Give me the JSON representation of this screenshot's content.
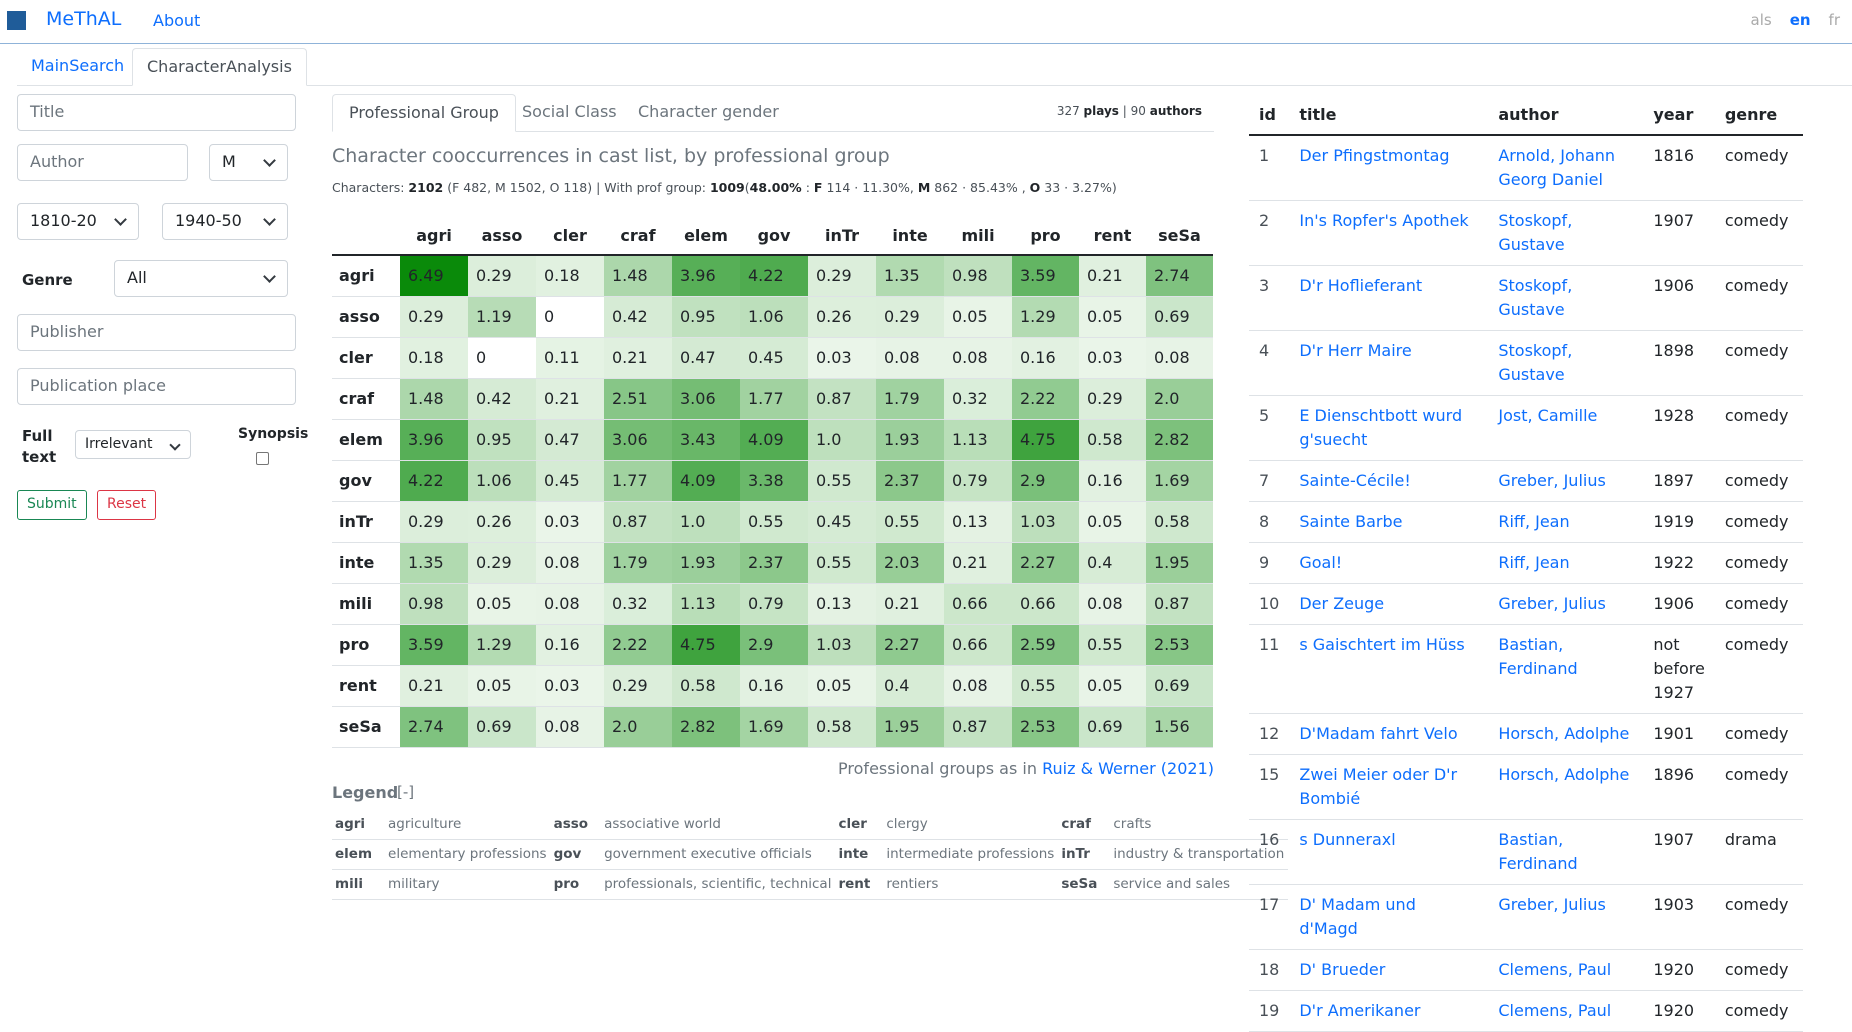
{
  "nav": {
    "brand": "MeThAL",
    "about": "About",
    "langs": [
      {
        "code": "als",
        "active": false
      },
      {
        "code": "en",
        "active": true
      },
      {
        "code": "fr",
        "active": false
      }
    ]
  },
  "main_tabs": [
    {
      "label": "MainSearch",
      "active": false
    },
    {
      "label": "CharacterAnalysis",
      "active": true
    }
  ],
  "search": {
    "title_placeholder": "Title",
    "author_placeholder": "Author",
    "gender_value": "M",
    "from_value": "1810-20",
    "to_value": "1940-50",
    "genre_label": "Genre",
    "genre_value": "All",
    "publisher_placeholder": "Publisher",
    "place_placeholder": "Publication place",
    "fulltext_label_1": "Full",
    "fulltext_label_2": "text",
    "fulltext_value": "Irrelevant",
    "synopsis_label": "Synopsis",
    "submit": "Submit",
    "reset": "Reset"
  },
  "sub_tabs": [
    {
      "label": "Professional Group",
      "active": true
    },
    {
      "label": "Social Class",
      "active": false
    },
    {
      "label": "Character gender",
      "active": false
    }
  ],
  "counts": {
    "plays": "327",
    "plays_label": "plays",
    "sep": "|",
    "authors": "90",
    "authors_label": "authors"
  },
  "chart_title": "Character cooccurrences in cast list, by professional group",
  "stats": {
    "p1": "Characters:",
    "total": "2102",
    "p2": "(F 482, M 1502, O 118) | With prof group:",
    "with": "1009",
    "p3": "(",
    "pct": "48.00%",
    "p4": ":",
    "f": "F",
    "f_val": "114 · 11.30%,",
    "m": "M",
    "m_val": "862 · 85.43% ,",
    "o": "O",
    "o_val": "33 · 3.27%)"
  },
  "chart_data": {
    "type": "heatmap",
    "columns": [
      "agri",
      "asso",
      "cler",
      "craf",
      "elem",
      "gov",
      "inTr",
      "inte",
      "mili",
      "pro",
      "rent",
      "seSa"
    ],
    "rows": [
      "agri",
      "asso",
      "cler",
      "craf",
      "elem",
      "gov",
      "inTr",
      "inte",
      "mili",
      "pro",
      "rent",
      "seSa"
    ],
    "values": [
      [
        "6.49",
        "0.29",
        "0.18",
        "1.48",
        "3.96",
        "4.22",
        "0.29",
        "1.35",
        "0.98",
        "3.59",
        "0.21",
        "2.74"
      ],
      [
        "0.29",
        "1.19",
        "0",
        "0.42",
        "0.95",
        "1.06",
        "0.26",
        "0.29",
        "0.05",
        "1.29",
        "0.05",
        "0.69"
      ],
      [
        "0.18",
        "0",
        "0.11",
        "0.21",
        "0.47",
        "0.45",
        "0.03",
        "0.08",
        "0.08",
        "0.16",
        "0.03",
        "0.08"
      ],
      [
        "1.48",
        "0.42",
        "0.21",
        "2.51",
        "3.06",
        "1.77",
        "0.87",
        "1.79",
        "0.32",
        "2.22",
        "0.29",
        "2.0"
      ],
      [
        "3.96",
        "0.95",
        "0.47",
        "3.06",
        "3.43",
        "4.09",
        "1.0",
        "1.93",
        "1.13",
        "4.75",
        "0.58",
        "2.82"
      ],
      [
        "4.22",
        "1.06",
        "0.45",
        "1.77",
        "4.09",
        "3.38",
        "0.55",
        "2.37",
        "0.79",
        "2.9",
        "0.16",
        "1.69"
      ],
      [
        "0.29",
        "0.26",
        "0.03",
        "0.87",
        "1.0",
        "0.55",
        "0.45",
        "0.55",
        "0.13",
        "1.03",
        "0.05",
        "0.58"
      ],
      [
        "1.35",
        "0.29",
        "0.08",
        "1.79",
        "1.93",
        "2.37",
        "0.55",
        "2.03",
        "0.21",
        "2.27",
        "0.4",
        "1.95"
      ],
      [
        "0.98",
        "0.05",
        "0.08",
        "0.32",
        "1.13",
        "0.79",
        "0.13",
        "0.21",
        "0.66",
        "0.66",
        "0.08",
        "0.87"
      ],
      [
        "3.59",
        "1.29",
        "0.16",
        "2.22",
        "4.75",
        "2.9",
        "1.03",
        "2.27",
        "0.66",
        "2.59",
        "0.55",
        "2.53"
      ],
      [
        "0.21",
        "0.05",
        "0.03",
        "0.29",
        "0.58",
        "0.16",
        "0.05",
        "0.4",
        "0.08",
        "0.55",
        "0.05",
        "0.69"
      ],
      [
        "2.74",
        "0.69",
        "0.08",
        "2.0",
        "2.82",
        "1.69",
        "0.58",
        "1.95",
        "0.87",
        "2.53",
        "0.69",
        "1.56"
      ]
    ]
  },
  "groups_note": {
    "text": "Professional groups as in",
    "link": "Ruiz & Werner (2021)"
  },
  "legend": {
    "title": "Legend",
    "toggle": "[-]",
    "rows": [
      [
        {
          "abbr": "agri",
          "name": "agriculture"
        },
        {
          "abbr": "asso",
          "name": "associative world"
        },
        {
          "abbr": "cler",
          "name": "clergy"
        },
        {
          "abbr": "craf",
          "name": "crafts"
        }
      ],
      [
        {
          "abbr": "elem",
          "name": "elementary professions"
        },
        {
          "abbr": "gov",
          "name": "government executive officials"
        },
        {
          "abbr": "inte",
          "name": "intermediate professions"
        },
        {
          "abbr": "inTr",
          "name": "industry & transportation"
        }
      ],
      [
        {
          "abbr": "mili",
          "name": "military"
        },
        {
          "abbr": "pro",
          "name": "professionals, scientific, technical"
        },
        {
          "abbr": "rent",
          "name": "rentiers"
        },
        {
          "abbr": "seSa",
          "name": "service and sales"
        }
      ]
    ]
  },
  "plays": {
    "headers": [
      "id",
      "title",
      "author",
      "year",
      "genre"
    ],
    "rows": [
      {
        "id": "1",
        "title": "Der Pfingstmontag",
        "author": "Arnold, Johann Georg Daniel",
        "year": "1816",
        "genre": "comedy"
      },
      {
        "id": "2",
        "title": "In's Ropfer's Apothek",
        "author": "Stoskopf, Gustave",
        "year": "1907",
        "genre": "comedy"
      },
      {
        "id": "3",
        "title": "D'r Hoflieferant",
        "author": "Stoskopf, Gustave",
        "year": "1906",
        "genre": "comedy"
      },
      {
        "id": "4",
        "title": "D'r Herr Maire",
        "author": "Stoskopf, Gustave",
        "year": "1898",
        "genre": "comedy"
      },
      {
        "id": "5",
        "title": "E Dienschtbott wurd g'suecht",
        "author": "Jost, Camille",
        "year": "1928",
        "genre": "comedy"
      },
      {
        "id": "7",
        "title": "Sainte-Cécile!",
        "author": "Greber, Julius",
        "year": "1897",
        "genre": "comedy"
      },
      {
        "id": "8",
        "title": "Sainte Barbe",
        "author": "Riff, Jean",
        "year": "1919",
        "genre": "comedy"
      },
      {
        "id": "9",
        "title": "Goal!",
        "author": "Riff, Jean",
        "year": "1922",
        "genre": "comedy"
      },
      {
        "id": "10",
        "title": "Der Zeuge",
        "author": "Greber, Julius",
        "year": "1906",
        "genre": "comedy"
      },
      {
        "id": "11",
        "title": "s Gaischtert im Hüss",
        "author": "Bastian, Ferdinand",
        "year": "not before 1927",
        "genre": "comedy"
      },
      {
        "id": "12",
        "title": "D'Madam fahrt Velo",
        "author": "Horsch, Adolphe",
        "year": "1901",
        "genre": "comedy"
      },
      {
        "id": "15",
        "title": "Zwei Meier oder D'r Bombié",
        "author": "Horsch, Adolphe",
        "year": "1896",
        "genre": "comedy"
      },
      {
        "id": "16",
        "title": "s Dunneraxl",
        "author": "Bastian, Ferdinand",
        "year": "1907",
        "genre": "drama"
      },
      {
        "id": "17",
        "title": "D' Madam und d'Magd",
        "author": "Greber, Julius",
        "year": "1903",
        "genre": "comedy"
      },
      {
        "id": "18",
        "title": "D' Brueder",
        "author": "Clemens, Paul",
        "year": "1920",
        "genre": "comedy"
      },
      {
        "id": "19",
        "title": "D'r Amerikaner",
        "author": "Clemens, Paul",
        "year": "1920",
        "genre": "comedy"
      }
    ]
  },
  "colors": {
    "link": "#0d6efd",
    "heat_max": "#0a8a0a",
    "heat_min": "#ffffff"
  }
}
